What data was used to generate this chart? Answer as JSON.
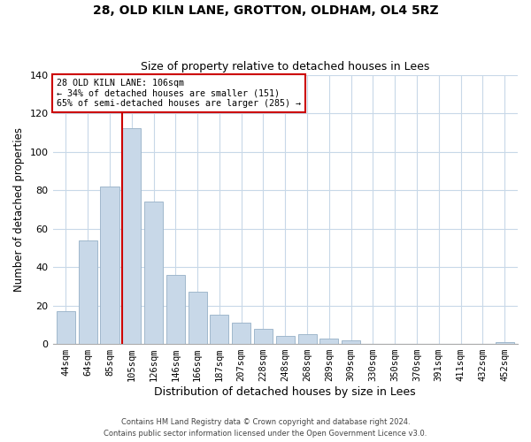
{
  "title1": "28, OLD KILN LANE, GROTTON, OLDHAM, OL4 5RZ",
  "title2": "Size of property relative to detached houses in Lees",
  "xlabel": "Distribution of detached houses by size in Lees",
  "ylabel": "Number of detached properties",
  "bar_labels": [
    "44sqm",
    "64sqm",
    "85sqm",
    "105sqm",
    "126sqm",
    "146sqm",
    "166sqm",
    "187sqm",
    "207sqm",
    "228sqm",
    "248sqm",
    "268sqm",
    "289sqm",
    "309sqm",
    "330sqm",
    "350sqm",
    "370sqm",
    "391sqm",
    "411sqm",
    "432sqm",
    "452sqm"
  ],
  "bar_values": [
    17,
    54,
    82,
    112,
    74,
    36,
    27,
    15,
    11,
    8,
    4,
    5,
    3,
    2,
    0,
    0,
    0,
    0,
    0,
    0,
    1
  ],
  "bar_color": "#c8d8e8",
  "bar_edge_color": "#a0b8cc",
  "vline_color": "#cc0000",
  "vline_index": 3,
  "annotation_title": "28 OLD KILN LANE: 106sqm",
  "annotation_line1": "← 34% of detached houses are smaller (151)",
  "annotation_line2": "65% of semi-detached houses are larger (285) →",
  "annotation_box_color": "#ffffff",
  "annotation_box_edge": "#cc0000",
  "ylim": [
    0,
    140
  ],
  "yticks": [
    0,
    20,
    40,
    60,
    80,
    100,
    120,
    140
  ],
  "footer1": "Contains HM Land Registry data © Crown copyright and database right 2024.",
  "footer2": "Contains public sector information licensed under the Open Government Licence v3.0."
}
